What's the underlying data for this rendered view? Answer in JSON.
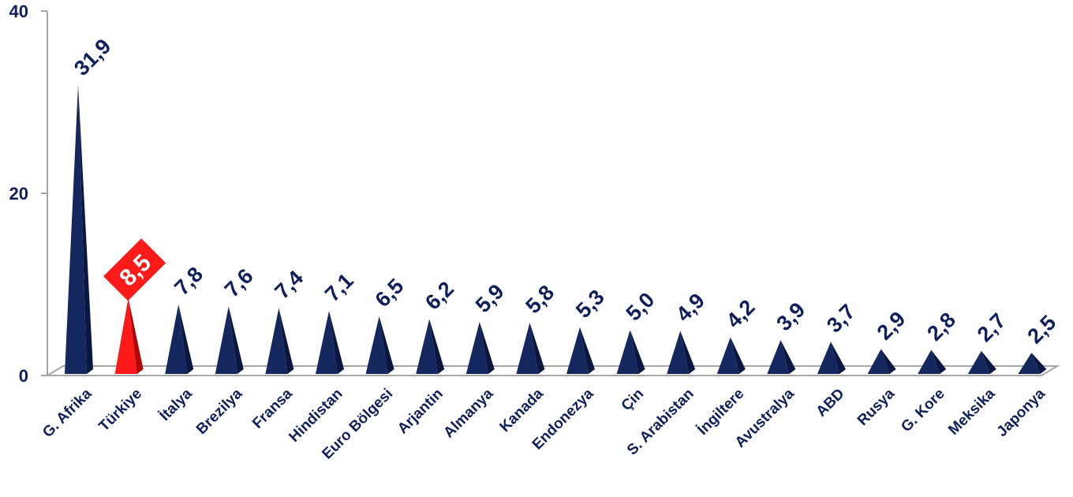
{
  "chart_data": {
    "type": "bar",
    "categories": [
      "G. Afrika",
      "Türkiye",
      "İtalya",
      "Brezilya",
      "Fransa",
      "Hindistan",
      "Euro Bölgesi",
      "Arjantin",
      "Almanya",
      "Kanada",
      "Endonezya",
      "Çin",
      "S. Arabistan",
      "İngiltere",
      "Avustralya",
      "ABD",
      "Rusya",
      "G. Kore",
      "Meksika",
      "Japonya"
    ],
    "values": [
      31.9,
      8.5,
      7.8,
      7.6,
      7.4,
      7.1,
      6.5,
      6.2,
      5.9,
      5.8,
      5.3,
      5.0,
      4.9,
      4.2,
      3.9,
      3.7,
      2.9,
      2.8,
      2.7,
      2.5
    ],
    "value_labels": [
      "31,9",
      "8,5",
      "7,8",
      "7,6",
      "7,4",
      "7,1",
      "6,5",
      "6,2",
      "5,9",
      "5,8",
      "5,3",
      "5,0",
      "4,9",
      "4,2",
      "3,9",
      "3,7",
      "2,9",
      "2,8",
      "2,7",
      "2,5"
    ],
    "highlight": "Türkiye",
    "yticks": [
      "0",
      "20",
      "40"
    ],
    "ylim": [
      0,
      40
    ],
    "title": "",
    "xlabel": "",
    "ylabel": "",
    "grid": false,
    "legend": "none",
    "colors": {
      "bar": "#14285f",
      "bar_dark": "#0a1740",
      "highlight": "#ff1a1a",
      "highlight_dark": "#b30000",
      "label": "#0f1f5c",
      "axis": "#a6a6a6"
    }
  }
}
